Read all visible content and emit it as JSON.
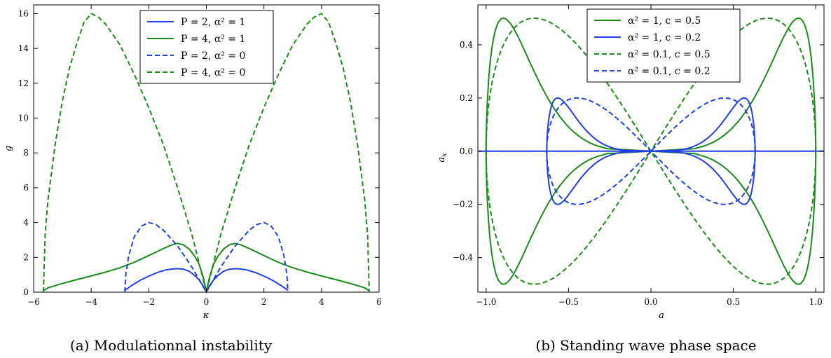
{
  "chart_data": [
    {
      "type": "line",
      "caption": "(a) Modulationnal instability",
      "xlabel": "κ",
      "ylabel": "g",
      "xlim": [
        -6,
        6
      ],
      "ylim": [
        0,
        16.5
      ],
      "xticks": [
        -6,
        -4,
        -2,
        0,
        2,
        4,
        6
      ],
      "xtick_labels": [
        "−6",
        "−4",
        "−2",
        "0",
        "2",
        "4",
        "6"
      ],
      "yticks": [
        0,
        2,
        4,
        6,
        8,
        10,
        12,
        14,
        16
      ],
      "ytick_labels": [
        "0",
        "2",
        "4",
        "6",
        "8",
        "10",
        "12",
        "14",
        "16"
      ],
      "grid": false,
      "legend_position": "top-center",
      "series": [
        {
          "name": "P = 2, α² = 1",
          "color": "#1f3fe0",
          "dash": "solid",
          "x": [
            -2.83,
            -2.6,
            -2.3,
            -2.0,
            -1.7,
            -1.4,
            -1.2,
            -1.0,
            -0.8,
            -0.6,
            -0.4,
            -0.25,
            -0.1,
            0,
            0.1,
            0.25,
            0.4,
            0.6,
            0.8,
            1.0,
            1.2,
            1.4,
            1.7,
            2.0,
            2.3,
            2.6,
            2.83
          ],
          "y": [
            0.1,
            0.38,
            0.68,
            0.92,
            1.13,
            1.28,
            1.33,
            1.35,
            1.32,
            1.2,
            0.95,
            0.7,
            0.33,
            0,
            0.33,
            0.7,
            0.95,
            1.2,
            1.32,
            1.35,
            1.33,
            1.28,
            1.13,
            0.92,
            0.68,
            0.38,
            0.1
          ]
        },
        {
          "name": "P = 4, α² = 1",
          "color": "#1a8a1a",
          "dash": "solid",
          "x": [
            -5.66,
            -5.5,
            -5.0,
            -4.5,
            -4.0,
            -3.5,
            -3.0,
            -2.5,
            -2.0,
            -1.5,
            -1.2,
            -1.0,
            -0.8,
            -0.6,
            -0.4,
            -0.25,
            -0.1,
            0,
            0.1,
            0.25,
            0.4,
            0.6,
            0.8,
            1.0,
            1.2,
            1.5,
            2.0,
            2.5,
            3.0,
            3.5,
            4.0,
            4.5,
            5.0,
            5.5,
            5.66
          ],
          "y": [
            0.08,
            0.25,
            0.5,
            0.72,
            0.93,
            1.15,
            1.4,
            1.72,
            2.1,
            2.5,
            2.72,
            2.8,
            2.72,
            2.48,
            2.05,
            1.6,
            0.8,
            0,
            0.8,
            1.6,
            2.05,
            2.48,
            2.72,
            2.8,
            2.72,
            2.5,
            2.1,
            1.72,
            1.4,
            1.15,
            0.93,
            0.72,
            0.5,
            0.25,
            0.08
          ]
        },
        {
          "name": "P = 2, α² = 0",
          "color": "#1f3fe0",
          "dash": "dashed",
          "x": [
            -2.83,
            -2.8,
            -2.7,
            -2.5,
            -2.25,
            -2.0,
            -1.75,
            -1.5,
            -1.25,
            -1.0,
            -0.75,
            -0.5,
            -0.25,
            0,
            0.25,
            0.5,
            0.75,
            1.0,
            1.25,
            1.5,
            1.75,
            2.0,
            2.25,
            2.5,
            2.7,
            2.8,
            2.83
          ],
          "y": [
            0,
            1.0,
            2.07,
            3.2,
            3.8,
            4.0,
            3.88,
            3.57,
            3.12,
            2.65,
            2.05,
            1.43,
            0.73,
            0,
            0.73,
            1.43,
            2.05,
            2.65,
            3.12,
            3.57,
            3.88,
            4.0,
            3.8,
            3.2,
            2.07,
            1.0,
            0
          ]
        },
        {
          "name": "P = 4, α² = 0",
          "color": "#1a8a1a",
          "dash": "dashed",
          "x": [
            -5.66,
            -5.6,
            -5.5,
            -5.25,
            -5.0,
            -4.75,
            -4.5,
            -4.25,
            -4.0,
            -3.75,
            -3.5,
            -3.0,
            -2.5,
            -2.0,
            -1.5,
            -1.0,
            -0.5,
            0,
            0.5,
            1.0,
            1.5,
            2.0,
            2.5,
            3.0,
            3.5,
            3.75,
            4.0,
            4.25,
            4.5,
            4.75,
            5.0,
            5.25,
            5.5,
            5.6,
            5.66
          ],
          "y": [
            0,
            3.3,
            5.3,
            8.5,
            11.0,
            12.9,
            14.3,
            15.5,
            16.0,
            15.8,
            15.4,
            14.2,
            12.5,
            10.6,
            8.5,
            6.0,
            3.3,
            0,
            3.3,
            6.0,
            8.5,
            10.6,
            12.5,
            14.2,
            15.4,
            15.8,
            16.0,
            15.5,
            14.3,
            12.9,
            11.0,
            8.5,
            5.3,
            3.3,
            0
          ]
        }
      ]
    },
    {
      "type": "line",
      "caption": "(b) Standing wave phase space",
      "xlabel": "a",
      "ylabel": "a_x",
      "xlim": [
        -1.05,
        1.05
      ],
      "ylim": [
        -0.53,
        0.55
      ],
      "xticks": [
        -1.0,
        -0.5,
        0.0,
        0.5,
        1.0
      ],
      "xtick_labels": [
        "−1.0",
        "−0.5",
        "0.0",
        "0.5",
        "1.0"
      ],
      "yticks": [
        -0.4,
        -0.2,
        0.0,
        0.2,
        0.4
      ],
      "ytick_labels": [
        "−0.4",
        "−0.2",
        "0.0",
        "0.2",
        "0.4"
      ],
      "grid": false,
      "legend_position": "top-center",
      "series": [
        {
          "name": "α² = 1, c = 0.5",
          "color": "#1a8a1a",
          "dash": "solid",
          "amp_x": 1.0,
          "amp_y": 0.5
        },
        {
          "name": "α² = 1, c = 0.2",
          "color": "#1f3fe0",
          "dash": "solid",
          "amp_x": 0.632,
          "amp_y": 0.2
        },
        {
          "name": "α² = 0.1, c = 0.5",
          "color": "#1a8a1a",
          "dash": "dashed",
          "amp_x": 1.0,
          "amp_y": 0.5
        },
        {
          "name": "α² = 0.1, c = 0.2",
          "color": "#1f3fe0",
          "dash": "dashed",
          "amp_x": 0.632,
          "amp_y": 0.2
        }
      ],
      "horizontal_line": {
        "y": 0.0,
        "color": "#1f3fe0",
        "xlim": [
          -1.05,
          1.05
        ]
      }
    }
  ]
}
